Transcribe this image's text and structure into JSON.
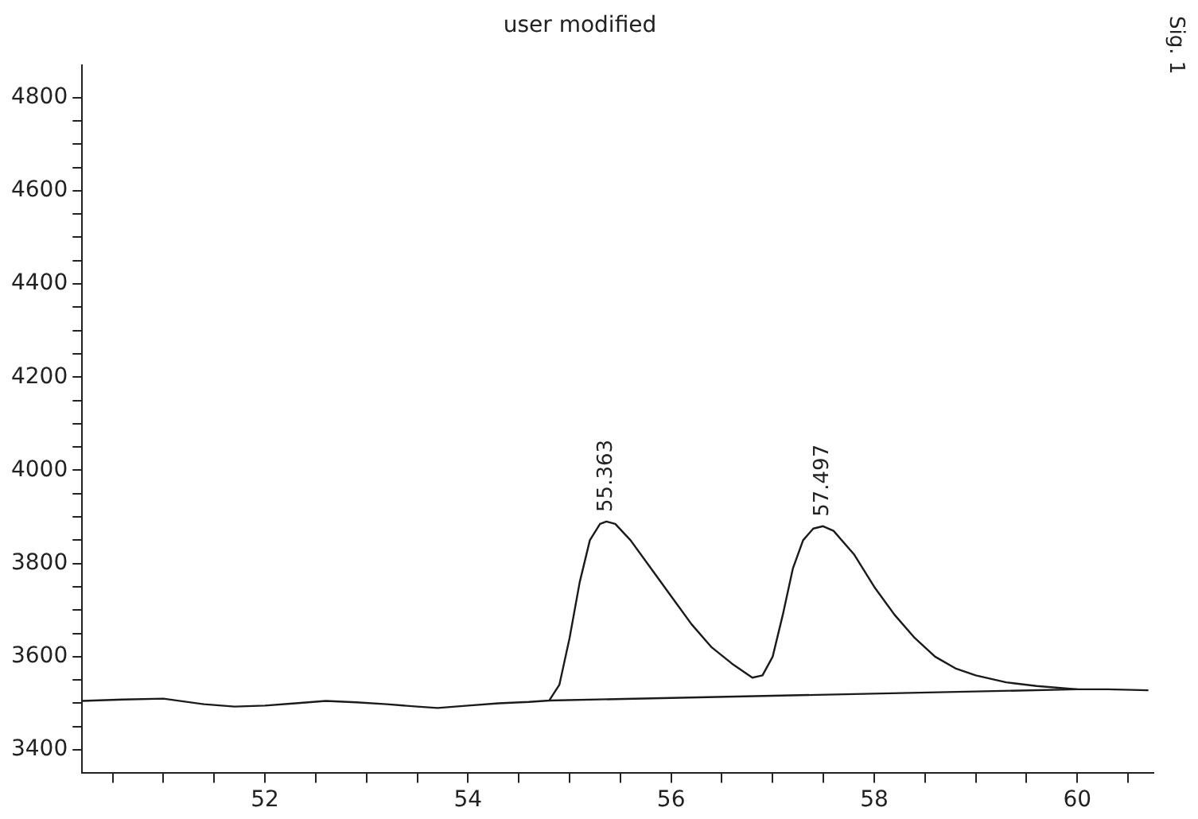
{
  "chart_data": {
    "type": "line",
    "title": "user modified",
    "series": [
      {
        "color": "#1a1a1a",
        "x": [
          50.2,
          50.6,
          51.0,
          51.4,
          51.7,
          52.0,
          52.3,
          52.6,
          52.9,
          53.2,
          53.5,
          53.7,
          54.0,
          54.3,
          54.6,
          54.8,
          54.9,
          55.0,
          55.1,
          55.2,
          55.3,
          55.363,
          55.45,
          55.6,
          55.8,
          56.0,
          56.2,
          56.4,
          56.6,
          56.8,
          56.9,
          57.0,
          57.1,
          57.2,
          57.3,
          57.4,
          57.497,
          57.6,
          57.8,
          58.0,
          58.2,
          58.4,
          58.6,
          58.8,
          59.0,
          59.3,
          59.6,
          60.0,
          60.3,
          60.7
        ],
        "values": [
          3505,
          3508,
          3510,
          3498,
          3493,
          3495,
          3500,
          3505,
          3502,
          3498,
          3493,
          3490,
          3495,
          3500,
          3503,
          3506,
          3540,
          3640,
          3760,
          3850,
          3885,
          3890,
          3885,
          3850,
          3790,
          3730,
          3670,
          3620,
          3585,
          3555,
          3560,
          3600,
          3690,
          3790,
          3850,
          3875,
          3880,
          3870,
          3820,
          3750,
          3690,
          3640,
          3600,
          3575,
          3560,
          3545,
          3537,
          3530,
          3530,
          3528
        ]
      },
      {
        "color": "#1a1a1a",
        "x": [
          54.8,
          60.0
        ],
        "values": [
          3506,
          3530
        ]
      }
    ],
    "xlim": [
      50.2,
      60.75
    ],
    "xticks": [
      {
        "value": 50.5,
        "label": null
      },
      {
        "value": 51,
        "label": null
      },
      {
        "value": 51.5,
        "label": null
      },
      52,
      {
        "value": 52.5,
        "label": null
      },
      {
        "value": 53,
        "label": null
      },
      {
        "value": 53.5,
        "label": null
      },
      54,
      {
        "value": 54.5,
        "label": null
      },
      {
        "value": 55,
        "label": null
      },
      {
        "value": 55.5,
        "label": null
      },
      56,
      {
        "value": 56.5,
        "label": null
      },
      {
        "value": 57,
        "label": null
      },
      {
        "value": 57.5,
        "label": null
      },
      58,
      {
        "value": 58.5,
        "label": null
      },
      {
        "value": 59,
        "label": null
      },
      {
        "value": 59.5,
        "label": null
      },
      60,
      {
        "value": 60.5,
        "label": null
      }
    ],
    "ylim": [
      3350,
      4870
    ],
    "yticks": [
      3400,
      {
        "value": 3450,
        "label": null
      },
      {
        "value": 3500,
        "label": null
      },
      {
        "value": 3550,
        "label": null
      },
      3600,
      {
        "value": 3650,
        "label": null
      },
      {
        "value": 3700,
        "label": null
      },
      {
        "value": 3750,
        "label": null
      },
      3800,
      {
        "value": 3850,
        "label": null
      },
      {
        "value": 3900,
        "label": null
      },
      {
        "value": 3950,
        "label": null
      },
      4000,
      {
        "value": 4050,
        "label": null
      },
      {
        "value": 4100,
        "label": null
      },
      {
        "value": 4150,
        "label": null
      },
      4200,
      {
        "value": 4250,
        "label": null
      },
      {
        "value": 4300,
        "label": null
      },
      {
        "value": 4350,
        "label": null
      },
      4400,
      {
        "value": 4450,
        "label": null
      },
      {
        "value": 4500,
        "label": null
      },
      {
        "value": 4550,
        "label": null
      },
      4600,
      {
        "value": 4650,
        "label": null
      },
      {
        "value": 4700,
        "label": null
      },
      {
        "value": 4750,
        "label": null
      },
      4800
    ],
    "grid": false,
    "legend": false,
    "marker": "none",
    "line_style": "solid",
    "annotations": [
      {
        "text": "55.363",
        "x": 55.363,
        "y": 3890
      },
      {
        "text": "57.497",
        "x": 57.497,
        "y": 3880
      },
      "Sig. 1"
    ]
  }
}
